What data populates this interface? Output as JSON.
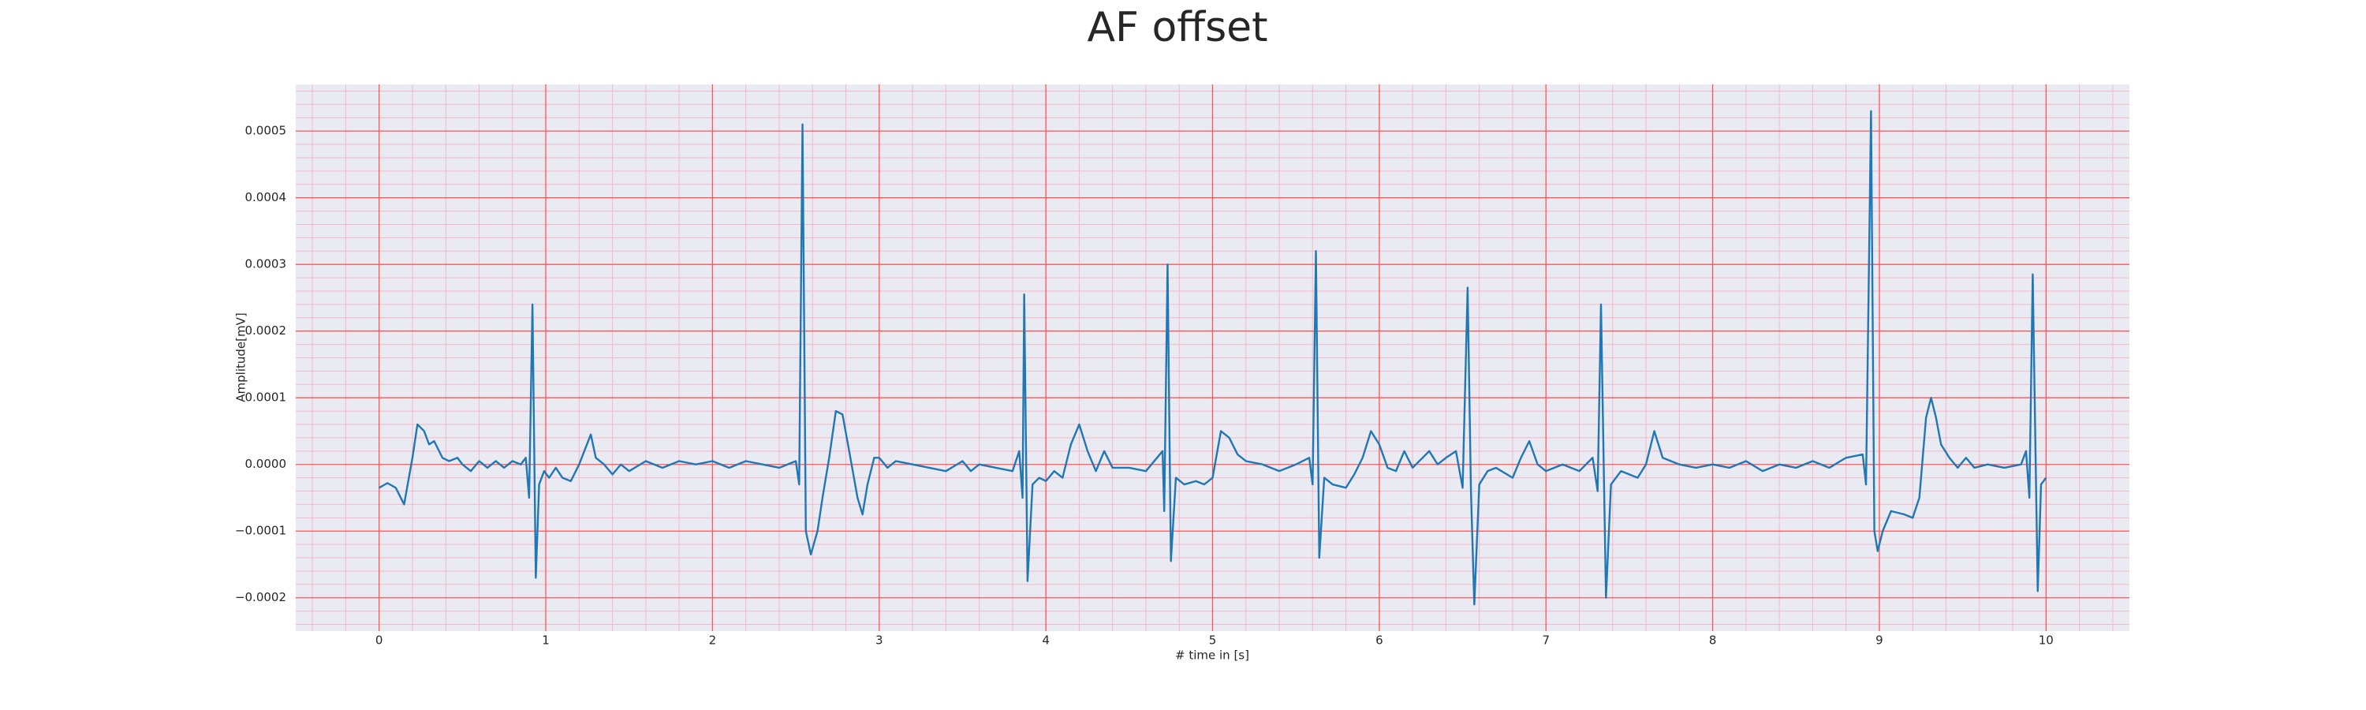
{
  "chart_data": {
    "type": "line",
    "title": "AF offset",
    "xlabel": "# time in [s]",
    "ylabel": "Amplitude[mV]",
    "color": "#1f77b4",
    "grid": true,
    "grid_color": "#ff5555",
    "minor_grid_color": "#f4b8c8",
    "minor_divisions": 5,
    "background": "#eaeaf2",
    "xlim": [
      -0.5,
      10.5
    ],
    "ylim": [
      -0.00025,
      0.00057
    ],
    "xticks": [
      0,
      1,
      2,
      3,
      4,
      5,
      6,
      7,
      8,
      9,
      10
    ],
    "yticks": [
      {
        "value": -0.0002,
        "label": "−0.0002"
      },
      {
        "value": -0.0001,
        "label": "−0.0001"
      },
      {
        "value": 0,
        "label": "0.0000"
      },
      {
        "value": 0.0001,
        "label": "0.0001"
      },
      {
        "value": 0.0002,
        "label": "0.0002"
      },
      {
        "value": 0.0003,
        "label": "0.0003"
      },
      {
        "value": 0.0004,
        "label": "0.0004"
      },
      {
        "value": 0.0005,
        "label": "0.0005"
      }
    ],
    "x": [
      0,
      0.05,
      0.1,
      0.15,
      0.2,
      0.23,
      0.27,
      0.3,
      0.33,
      0.38,
      0.42,
      0.47,
      0.5,
      0.55,
      0.6,
      0.65,
      0.7,
      0.75,
      0.8,
      0.85,
      0.88,
      0.9,
      0.92,
      0.94,
      0.96,
      0.99,
      1.02,
      1.06,
      1.1,
      1.15,
      1.2,
      1.27,
      1.3,
      1.35,
      1.4,
      1.45,
      1.5,
      1.6,
      1.7,
      1.8,
      1.9,
      2.0,
      2.1,
      2.2,
      2.3,
      2.4,
      2.5,
      2.52,
      2.54,
      2.56,
      2.59,
      2.63,
      2.66,
      2.7,
      2.74,
      2.78,
      2.82,
      2.87,
      2.9,
      2.93,
      2.97,
      3.0,
      3.05,
      3.1,
      3.2,
      3.3,
      3.4,
      3.5,
      3.55,
      3.6,
      3.7,
      3.8,
      3.84,
      3.86,
      3.87,
      3.89,
      3.92,
      3.96,
      4.0,
      4.05,
      4.1,
      4.15,
      4.2,
      4.25,
      4.3,
      4.35,
      4.4,
      4.5,
      4.6,
      4.7,
      4.71,
      4.73,
      4.75,
      4.78,
      4.83,
      4.9,
      4.95,
      5.0,
      5.05,
      5.1,
      5.15,
      5.2,
      5.3,
      5.4,
      5.5,
      5.58,
      5.6,
      5.62,
      5.64,
      5.67,
      5.72,
      5.8,
      5.85,
      5.9,
      5.95,
      6.0,
      6.05,
      6.1,
      6.15,
      6.2,
      6.3,
      6.35,
      6.4,
      6.46,
      6.5,
      6.53,
      6.55,
      6.57,
      6.6,
      6.65,
      6.7,
      6.8,
      6.85,
      6.9,
      6.95,
      7.0,
      7.1,
      7.2,
      7.28,
      7.31,
      7.33,
      7.36,
      7.39,
      7.45,
      7.55,
      7.6,
      7.65,
      7.7,
      7.8,
      7.9,
      8.0,
      8.1,
      8.2,
      8.3,
      8.4,
      8.5,
      8.6,
      8.7,
      8.8,
      8.9,
      8.92,
      8.95,
      8.97,
      8.99,
      9.02,
      9.07,
      9.15,
      9.2,
      9.24,
      9.28,
      9.31,
      9.34,
      9.37,
      9.42,
      9.47,
      9.52,
      9.57,
      9.65,
      9.75,
      9.85,
      9.88,
      9.9,
      9.92,
      9.95,
      9.97,
      10.0
    ],
    "values": [
      -3.5e-05,
      -2.8e-05,
      -3.5e-05,
      -6e-05,
      1e-05,
      6e-05,
      5e-05,
      3e-05,
      3.5e-05,
      1e-05,
      5e-06,
      1e-05,
      0,
      -1e-05,
      5e-06,
      -5e-06,
      5e-06,
      -5e-06,
      5e-06,
      0,
      1e-05,
      -5e-05,
      0.00024,
      -0.00017,
      -3e-05,
      -1e-05,
      -2e-05,
      -5e-06,
      -2e-05,
      -2.5e-05,
      0,
      4.5e-05,
      1e-05,
      0,
      -1.5e-05,
      0,
      -1e-05,
      5e-06,
      -5e-06,
      5e-06,
      0,
      5e-06,
      -5e-06,
      5e-06,
      0,
      -5e-06,
      5e-06,
      -3e-05,
      0.00051,
      -0.0001,
      -0.000135,
      -0.0001,
      -5e-05,
      1e-05,
      8e-05,
      7.5e-05,
      2e-05,
      -5e-05,
      -7.5e-05,
      -3e-05,
      1e-05,
      1e-05,
      -5e-06,
      5e-06,
      0,
      -5e-06,
      -1e-05,
      5e-06,
      -1e-05,
      0,
      -5e-06,
      -1e-05,
      2e-05,
      -5e-05,
      0.000255,
      -0.000175,
      -3e-05,
      -2e-05,
      -2.5e-05,
      -1e-05,
      -2e-05,
      3e-05,
      6e-05,
      2e-05,
      -1e-05,
      2e-05,
      -5e-06,
      -5e-06,
      -1e-05,
      2e-05,
      -7e-05,
      0.0003,
      -0.000145,
      -2e-05,
      -3e-05,
      -2.5e-05,
      -3e-05,
      -2e-05,
      5e-05,
      4e-05,
      1.5e-05,
      5e-06,
      0,
      -1e-05,
      0,
      1e-05,
      -3e-05,
      0.00032,
      -0.00014,
      -2e-05,
      -3e-05,
      -3.5e-05,
      -1.5e-05,
      1e-05,
      5e-05,
      3e-05,
      -5e-06,
      -1e-05,
      2e-05,
      -5e-06,
      2e-05,
      0,
      1e-05,
      2e-05,
      -3.5e-05,
      0.000265,
      -4e-05,
      -0.00021,
      -3e-05,
      -1e-05,
      -5e-06,
      -2e-05,
      1e-05,
      3.5e-05,
      0,
      -1e-05,
      0,
      -1e-05,
      1e-05,
      -4e-05,
      0.00024,
      -0.0002,
      -3e-05,
      -1e-05,
      -2e-05,
      0,
      5e-05,
      1e-05,
      0,
      -5e-06,
      0,
      -5e-06,
      5e-06,
      -1e-05,
      0,
      -5e-06,
      5e-06,
      -5e-06,
      1e-05,
      1.5e-05,
      -3e-05,
      0.00053,
      -0.0001,
      -0.00013,
      -0.0001,
      -7e-05,
      -7.5e-05,
      -8e-05,
      -5e-05,
      7e-05,
      0.0001,
      7e-05,
      3e-05,
      1e-05,
      -5e-06,
      1e-05,
      -5e-06,
      0,
      -5e-06,
      0,
      2e-05,
      -5e-05,
      0.000285,
      -0.00019,
      -3e-05,
      -2e-05
    ]
  }
}
